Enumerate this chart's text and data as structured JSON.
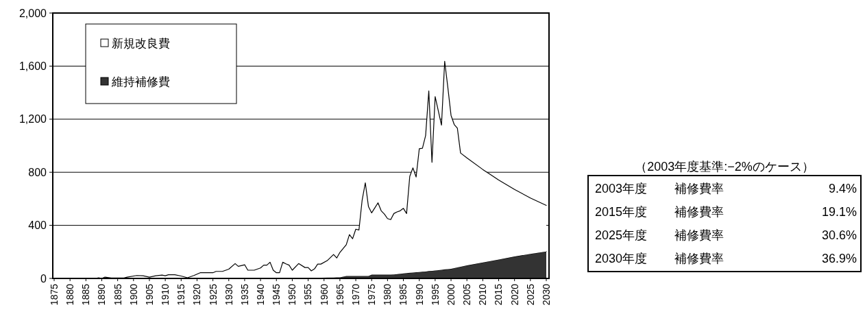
{
  "chart_data": {
    "type": "area",
    "stacked": true,
    "grid": "y",
    "legend": "top left",
    "x": [
      1875,
      1888,
      1889,
      1890,
      1891,
      1893,
      1897,
      1898,
      1901,
      1903,
      1905,
      1907,
      1909,
      1910,
      1911,
      1913,
      1915,
      1917,
      1919,
      1921,
      1925,
      1926,
      1928,
      1930,
      1932,
      1933,
      1935,
      1936,
      1938,
      1940,
      1941,
      1942,
      1943,
      1944,
      1945,
      1946,
      1947,
      1948,
      1949,
      1950,
      1952,
      1954,
      1955,
      1956,
      1957,
      1958,
      1959,
      1961,
      1963,
      1964,
      1965,
      1967,
      1968,
      1969,
      1970,
      1971,
      1972,
      1973,
      1974,
      1975,
      1976,
      1977,
      1978,
      1979,
      1980,
      1981,
      1982,
      1983,
      1984,
      1985,
      1986,
      1987,
      1988,
      1989,
      1990,
      1991,
      1992,
      1993,
      1994,
      1995,
      1997,
      1998,
      1999,
      2000,
      2001,
      2002,
      2003,
      2005,
      2010,
      2015,
      2020,
      2025,
      2030
    ],
    "series": [
      {
        "name": "維持補修費",
        "color": "#333333",
        "values": [
          0,
          0,
          0,
          0,
          0,
          0,
          0,
          0,
          0,
          0,
          0,
          0,
          0,
          0,
          0,
          0,
          0,
          0,
          0,
          0,
          0,
          0,
          0,
          0,
          0,
          0,
          0,
          0,
          0,
          0,
          0,
          0,
          0,
          0,
          0,
          0,
          0,
          5,
          5,
          5,
          5,
          5,
          5,
          5,
          5,
          5,
          5,
          6,
          7,
          8,
          8,
          18,
          18,
          18,
          18,
          18,
          18,
          18,
          18,
          28,
          28,
          28,
          28,
          28,
          28,
          28,
          30,
          32,
          35,
          38,
          40,
          42,
          44,
          46,
          48,
          50,
          52,
          55,
          57,
          60,
          65,
          68,
          70,
          72,
          78,
          83,
          88,
          98,
          120,
          142,
          165,
          185,
          203
        ]
      },
      {
        "name": "新規改良費",
        "color": "#ffffff",
        "values": [
          0,
          0,
          5,
          0,
          10,
          3,
          3,
          10,
          22,
          20,
          10,
          20,
          25,
          20,
          28,
          28,
          18,
          5,
          22,
          43,
          43,
          53,
          53,
          70,
          112,
          91,
          103,
          62,
          62,
          79,
          100,
          100,
          122,
          62,
          43,
          43,
          122,
          105,
          95,
          57,
          107,
          77,
          77,
          52,
          67,
          103,
          103,
          128,
          173,
          146,
          188,
          236,
          312,
          281,
          353,
          347,
          571,
          703,
          523,
          466,
          504,
          542,
          482,
          457,
          423,
          415,
          459,
          469,
          475,
          490,
          449,
          727,
          789,
          718,
          929,
          931,
          1025,
          1358,
          818,
          1310,
          1090,
          1569,
          1369,
          1157,
          1082,
          1049,
          857,
          810,
          701,
          600,
          506,
          421,
          347
        ]
      }
    ],
    "xlim": [
      1875,
      2030
    ],
    "xticks": [
      1875,
      1880,
      1885,
      1890,
      1895,
      1900,
      1905,
      1910,
      1915,
      1920,
      1925,
      1930,
      1935,
      1940,
      1945,
      1950,
      1955,
      1960,
      1965,
      1970,
      1975,
      1980,
      1985,
      1990,
      1995,
      2000,
      2005,
      2010,
      2015,
      2020,
      2025,
      2030
    ],
    "ylim": [
      0,
      2000
    ],
    "yticks": [
      0,
      {
        "value": 400,
        "label": "400"
      },
      {
        "value": 800,
        "label": "800"
      },
      {
        "value": 1200,
        "label": "1,200"
      },
      {
        "value": 1600,
        "label": "1,600"
      },
      {
        "value": 2000,
        "label": "2,000"
      }
    ],
    "annotations": [
      "（2003年度基準:−2%のケース）",
      "2003年度　補修費率　9.4%",
      "2015年度　補修費率　19.1%",
      "2025年度　補修費率　30.6%",
      "2030年度　補修費率　36.9%"
    ]
  }
}
